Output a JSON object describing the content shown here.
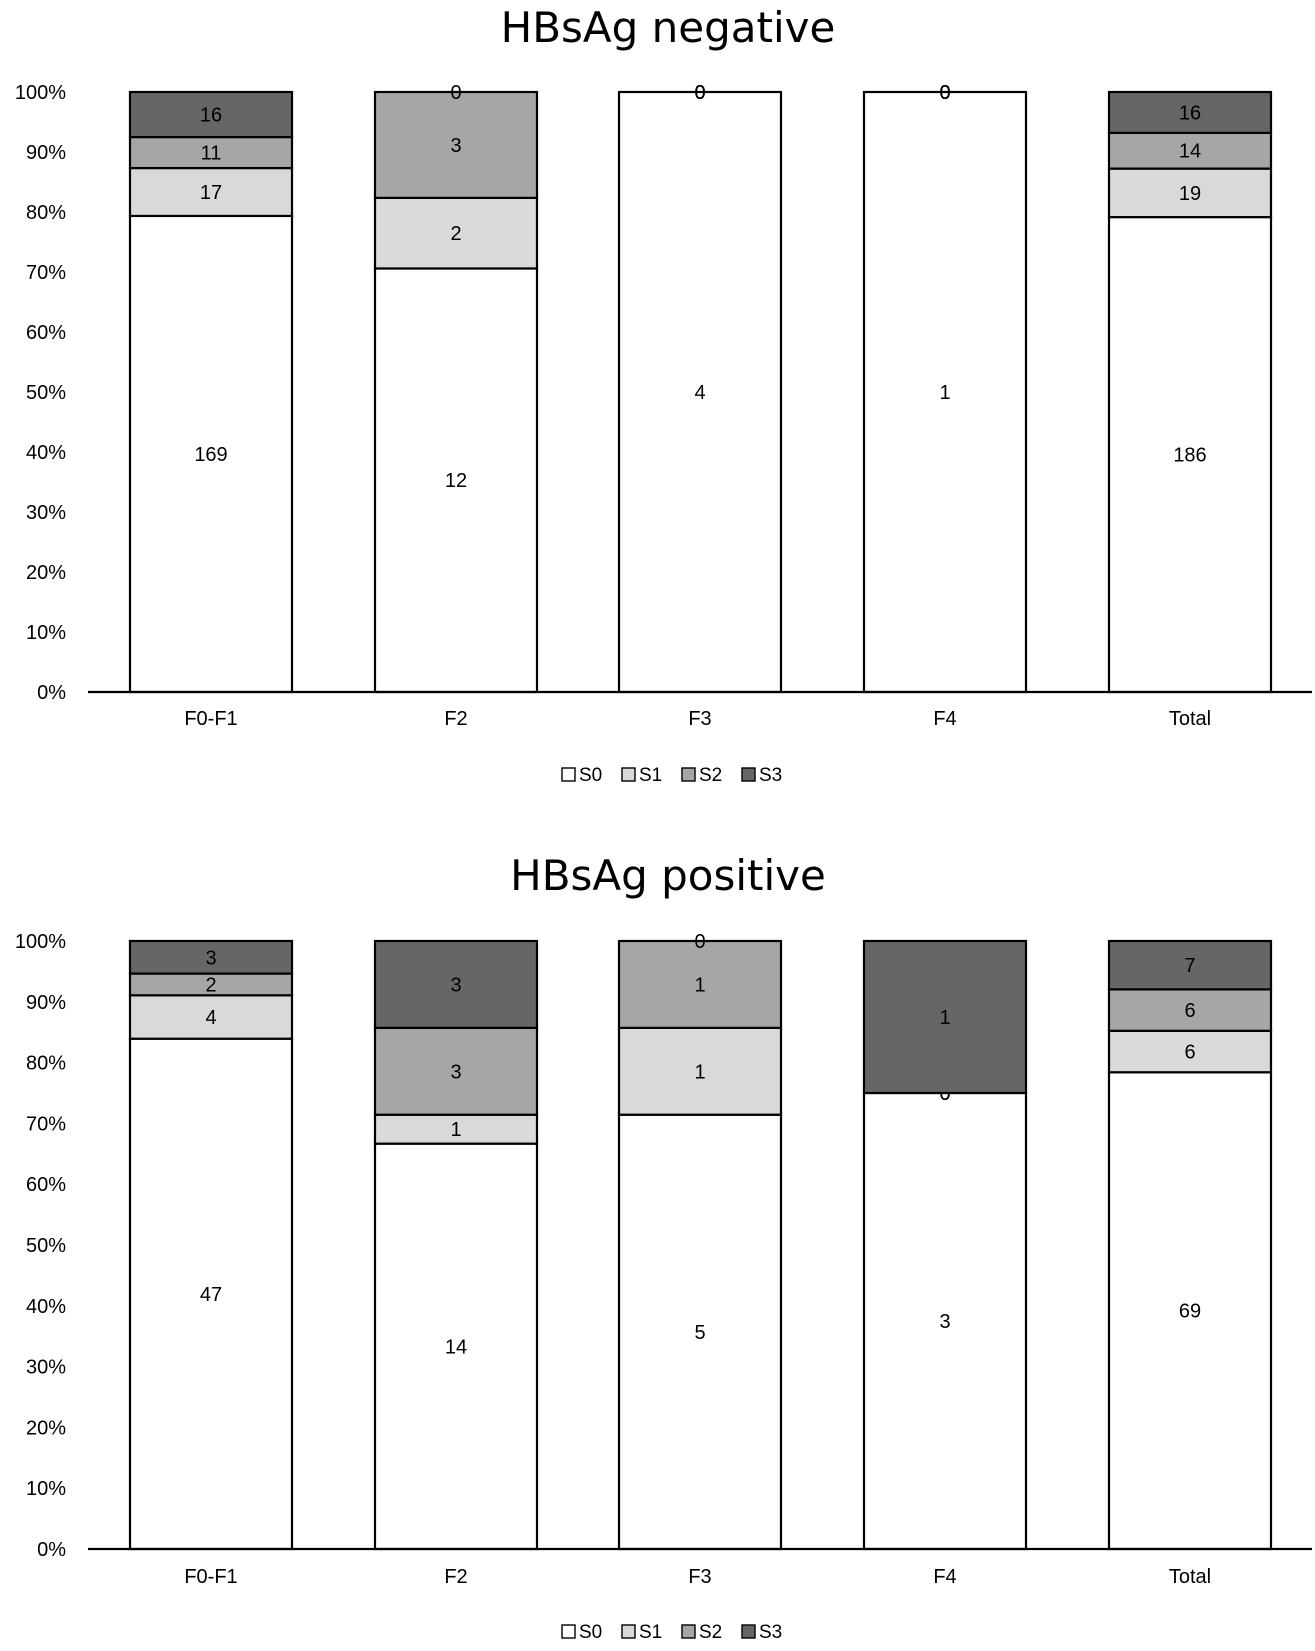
{
  "chart_data": [
    {
      "type": "bar",
      "stacked": "percent",
      "title": "HBsAg negative",
      "categories": [
        "F0-F1",
        "F2",
        "F3",
        "F4",
        "Total"
      ],
      "series": [
        {
          "name": "S0",
          "values": [
            169,
            12,
            4,
            1,
            186
          ],
          "color": "#ffffff"
        },
        {
          "name": "S1",
          "values": [
            17,
            2,
            0,
            0,
            19
          ],
          "color": "#d9d9d9"
        },
        {
          "name": "S2",
          "values": [
            11,
            3,
            0,
            0,
            14
          ],
          "color": "#a6a6a6"
        },
        {
          "name": "S3",
          "values": [
            16,
            0,
            0,
            0,
            16
          ],
          "color": "#666666"
        }
      ],
      "ylim": [
        0,
        100
      ],
      "y_ticks": [
        "0%",
        "10%",
        "20%",
        "30%",
        "40%",
        "50%",
        "60%",
        "70%",
        "80%",
        "90%",
        "100%"
      ],
      "legend_position": "bottom",
      "grid": false
    },
    {
      "type": "bar",
      "stacked": "percent",
      "title": "HBsAg positive",
      "categories": [
        "F0-F1",
        "F2",
        "F3",
        "F4",
        "Total"
      ],
      "series": [
        {
          "name": "S0",
          "values": [
            47,
            14,
            5,
            3,
            69
          ],
          "color": "#ffffff"
        },
        {
          "name": "S1",
          "values": [
            4,
            1,
            1,
            0,
            6
          ],
          "color": "#d9d9d9"
        },
        {
          "name": "S2",
          "values": [
            2,
            3,
            1,
            0,
            6
          ],
          "color": "#a6a6a6"
        },
        {
          "name": "S3",
          "values": [
            3,
            3,
            0,
            1,
            7
          ],
          "color": "#666666"
        }
      ],
      "ylim": [
        0,
        100
      ],
      "y_ticks": [
        "0%",
        "10%",
        "20%",
        "30%",
        "40%",
        "50%",
        "60%",
        "70%",
        "80%",
        "90%",
        "100%"
      ],
      "legend_position": "bottom",
      "grid": false
    }
  ]
}
